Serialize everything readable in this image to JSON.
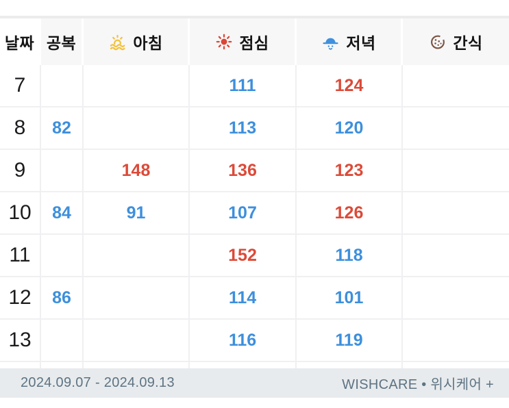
{
  "table": {
    "columns": [
      {
        "label": "날짜",
        "icon": null
      },
      {
        "label": "공복",
        "icon": null
      },
      {
        "label": "아침",
        "icon": "sunrise-icon"
      },
      {
        "label": "점심",
        "icon": "sun-icon"
      },
      {
        "label": "저녁",
        "icon": "sunset-icon"
      },
      {
        "label": "간식",
        "icon": "cookie-icon"
      }
    ],
    "rows": [
      {
        "cells": [
          {
            "v": "7",
            "c": "blue"
          },
          {
            "v": "",
            "c": ""
          },
          {
            "v": "",
            "c": ""
          },
          {
            "v": "111",
            "c": "blue"
          },
          {
            "v": "124",
            "c": "red"
          },
          {
            "v": "",
            "c": ""
          }
        ]
      },
      {
        "cells": [
          {
            "v": "8",
            "c": "red"
          },
          {
            "v": "82",
            "c": "blue"
          },
          {
            "v": "",
            "c": ""
          },
          {
            "v": "113",
            "c": "blue"
          },
          {
            "v": "120",
            "c": "blue"
          },
          {
            "v": "",
            "c": ""
          }
        ]
      },
      {
        "cells": [
          {
            "v": "9",
            "c": "black"
          },
          {
            "v": "",
            "c": ""
          },
          {
            "v": "148",
            "c": "red"
          },
          {
            "v": "136",
            "c": "red"
          },
          {
            "v": "123",
            "c": "red"
          },
          {
            "v": "",
            "c": ""
          }
        ]
      },
      {
        "cells": [
          {
            "v": "10",
            "c": "black"
          },
          {
            "v": "84",
            "c": "blue"
          },
          {
            "v": "91",
            "c": "blue"
          },
          {
            "v": "107",
            "c": "blue"
          },
          {
            "v": "126",
            "c": "red"
          },
          {
            "v": "",
            "c": ""
          }
        ]
      },
      {
        "cells": [
          {
            "v": "11",
            "c": "black"
          },
          {
            "v": "",
            "c": ""
          },
          {
            "v": "",
            "c": ""
          },
          {
            "v": "152",
            "c": "red"
          },
          {
            "v": "118",
            "c": "blue"
          },
          {
            "v": "",
            "c": ""
          }
        ]
      },
      {
        "cells": [
          {
            "v": "12",
            "c": "black"
          },
          {
            "v": "86",
            "c": "blue"
          },
          {
            "v": "",
            "c": ""
          },
          {
            "v": "114",
            "c": "blue"
          },
          {
            "v": "101",
            "c": "blue"
          },
          {
            "v": "",
            "c": ""
          }
        ]
      },
      {
        "cells": [
          {
            "v": "13",
            "c": "black"
          },
          {
            "v": "",
            "c": ""
          },
          {
            "v": "",
            "c": ""
          },
          {
            "v": "116",
            "c": "blue"
          },
          {
            "v": "119",
            "c": "blue"
          },
          {
            "v": "",
            "c": ""
          }
        ]
      }
    ]
  },
  "footer": {
    "date_range": "2024.09.07 - 2024.09.13",
    "brand": "WISHCARE • 위시케어 +"
  },
  "colors": {
    "value_blue": "#3d8fdc",
    "value_red": "#dc4a38",
    "date_black": "#1c1c1e",
    "header_bg": "#f7f7f8",
    "cell_border": "#f0f0f2",
    "footer_bg": "#e8ebed",
    "footer_text": "#5d7383",
    "icon_yellow": "#f3c23d",
    "icon_red": "#dc4636",
    "icon_blue": "#3f90dd",
    "icon_brown": "#7d5440"
  }
}
